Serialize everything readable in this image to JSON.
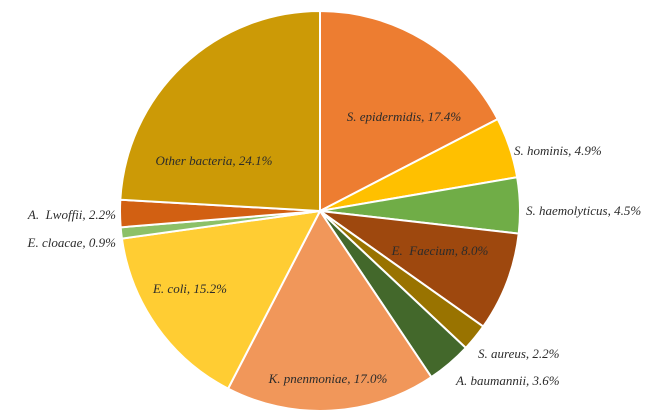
{
  "chart_data": {
    "type": "pie",
    "title": "",
    "series": [
      {
        "label": "S. epidermidis, 17.4%",
        "value": 17.4,
        "color": "#ED7D31"
      },
      {
        "label": "S. hominis, 4.9%",
        "value": 4.9,
        "color": "#FFC000"
      },
      {
        "label": "S. haemolyticus, 4.5%",
        "value": 4.5,
        "color": "#70AD47"
      },
      {
        "label": "E.  Faecium, 8.0%",
        "value": 8.0,
        "color": "#9E480E"
      },
      {
        "label": "S. aureus, 2.2%",
        "value": 2.2,
        "color": "#997300"
      },
      {
        "label": "A. baumannii, 3.6%",
        "value": 3.6,
        "color": "#43682B"
      },
      {
        "label": "K. pnenmoniae, 17.0%",
        "value": 17.0,
        "color": "#F1975A"
      },
      {
        "label": "E. coli, 15.2%",
        "value": 15.2,
        "color": "#FFCD33"
      },
      {
        "label": "E. cloacae, 0.9%",
        "value": 0.9,
        "color": "#8CC168"
      },
      {
        "label": "A.  Lwoffii, 2.2%",
        "value": 2.2,
        "color": "#D26012"
      },
      {
        "label": "Other bacteria, 24.1%",
        "value": 24.1,
        "color": "#CC9A06"
      }
    ]
  }
}
